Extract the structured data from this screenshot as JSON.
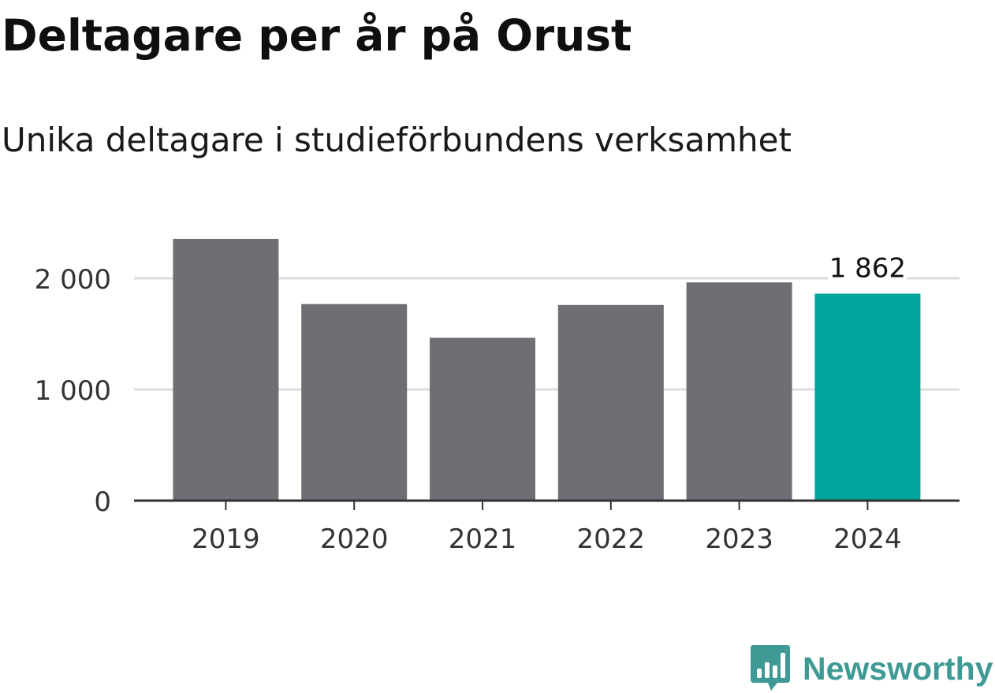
{
  "title": "Deltagare per år på Orust",
  "subtitle": "Unika deltagare i studieförbundens verksamhet",
  "brand": {
    "name": "Newsworthy",
    "icon": "bar-chart-speech-bubble-icon",
    "color": "#3f9a95"
  },
  "chart_data": {
    "type": "bar",
    "categories": [
      "2019",
      "2020",
      "2021",
      "2022",
      "2023",
      "2024"
    ],
    "values": [
      2355,
      1768,
      1465,
      1760,
      1963,
      1862
    ],
    "colors": [
      "#6f6e74",
      "#6f6e74",
      "#6f6e74",
      "#6f6e74",
      "#6f6e74",
      "#00a49b"
    ],
    "highlight_index": 5,
    "data_labels": [
      null,
      null,
      null,
      null,
      null,
      "1 862"
    ],
    "yticks": [
      0,
      1000,
      2000
    ],
    "ytick_labels": [
      "0",
      "1 000",
      "2 000"
    ],
    "ylim": [
      0,
      2500
    ],
    "grid": true,
    "grid_color": "#dddddd",
    "xlabel": "",
    "ylabel": ""
  }
}
